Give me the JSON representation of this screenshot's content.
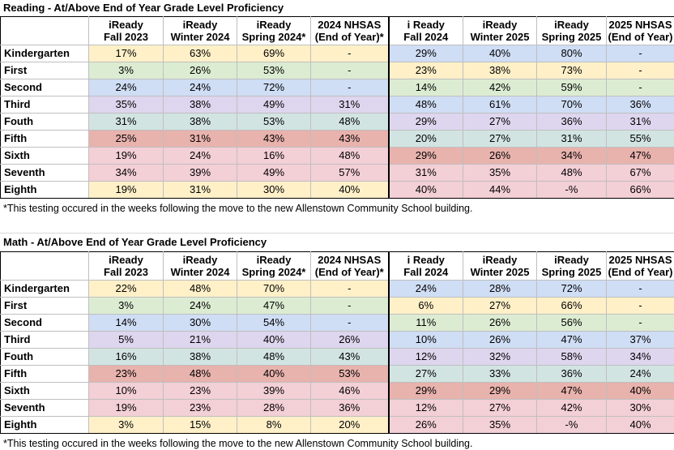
{
  "colors": {
    "yellow": "#fff0c8",
    "green": "#dcecd2",
    "blue": "#cfddf5",
    "purple": "#ddd6ee",
    "teal": "#d2e4e2",
    "red": "#e8b2ad",
    "pink": "#f3cfd6"
  },
  "headers": [
    [
      "",
      ""
    ],
    [
      "iReady",
      "Fall 2023"
    ],
    [
      "iReady",
      "Winter 2024"
    ],
    [
      "iReady",
      "Spring 2024*"
    ],
    [
      "2024 NHSAS",
      "(End of Year)*"
    ],
    [
      "i Ready",
      "Fall 2024"
    ],
    [
      "iReady",
      "Winter 2025"
    ],
    [
      "iReady",
      "Spring 2025"
    ],
    [
      "2025 NHSAS",
      "(End of Year)"
    ]
  ],
  "reading": {
    "title": "Reading - At/Above End of Year Grade Level Proficiency",
    "note": "*This testing occured in the weeks following the move to the new Allenstown Community School building.",
    "rows": [
      {
        "grade": "Kindergarten",
        "c1": "yellow",
        "c2": "blue",
        "v": [
          "17%",
          "63%",
          "69%",
          "-",
          "29%",
          "40%",
          "80%",
          "-"
        ]
      },
      {
        "grade": "First",
        "c1": "green",
        "c2": "yellow",
        "v": [
          "3%",
          "26%",
          "53%",
          "-",
          "23%",
          "38%",
          "73%",
          "-"
        ]
      },
      {
        "grade": "Second",
        "c1": "blue",
        "c2": "green",
        "v": [
          "24%",
          "24%",
          "72%",
          "-",
          "14%",
          "42%",
          "59%",
          "-"
        ]
      },
      {
        "grade": "Third",
        "c1": "purple",
        "c2": "blue",
        "v": [
          "35%",
          "38%",
          "49%",
          "31%",
          "48%",
          "61%",
          "70%",
          "36%"
        ]
      },
      {
        "grade": "Fouth",
        "c1": "teal",
        "c2": "purple",
        "v": [
          "31%",
          "38%",
          "53%",
          "48%",
          "29%",
          "27%",
          "36%",
          "31%"
        ]
      },
      {
        "grade": "Fifth",
        "c1": "red",
        "c2": "teal",
        "v": [
          "25%",
          "31%",
          "43%",
          "43%",
          "20%",
          "27%",
          "31%",
          "55%"
        ]
      },
      {
        "grade": "Sixth",
        "c1": "pink",
        "c2": "red",
        "v": [
          "19%",
          "24%",
          "16%",
          "48%",
          "29%",
          "26%",
          "34%",
          "47%"
        ]
      },
      {
        "grade": "Seventh",
        "c1": "pink",
        "c2": "pink",
        "v": [
          "34%",
          "39%",
          "49%",
          "57%",
          "31%",
          "35%",
          "48%",
          "67%"
        ]
      },
      {
        "grade": "Eighth",
        "c1": "yellow",
        "c2": "pink",
        "v": [
          "19%",
          "31%",
          "30%",
          "40%",
          "40%",
          "44%",
          "-%",
          "66%"
        ]
      }
    ]
  },
  "math": {
    "title": "Math - At/Above End of Year Grade Level Proficiency",
    "note": "*This testing occured in the weeks following the move to the new Allenstown Community School building.",
    "rows": [
      {
        "grade": "Kindergarten",
        "c1": "yellow",
        "c2": "blue",
        "v": [
          "22%",
          "48%",
          "70%",
          "-",
          "24%",
          "28%",
          "72%",
          "-"
        ]
      },
      {
        "grade": "First",
        "c1": "green",
        "c2": "yellow",
        "v": [
          "3%",
          "24%",
          "47%",
          "-",
          "6%",
          "27%",
          "66%",
          "-"
        ]
      },
      {
        "grade": "Second",
        "c1": "blue",
        "c2": "green",
        "v": [
          "14%",
          "30%",
          "54%",
          "-",
          "11%",
          "26%",
          "56%",
          "-"
        ]
      },
      {
        "grade": "Third",
        "c1": "purple",
        "c2": "blue",
        "v": [
          "5%",
          "21%",
          "40%",
          "26%",
          "10%",
          "26%",
          "47%",
          "37%"
        ]
      },
      {
        "grade": "Fouth",
        "c1": "teal",
        "c2": "purple",
        "v": [
          "16%",
          "38%",
          "48%",
          "43%",
          "12%",
          "32%",
          "58%",
          "34%"
        ]
      },
      {
        "grade": "Fifth",
        "c1": "red",
        "c2": "teal",
        "v": [
          "23%",
          "48%",
          "40%",
          "53%",
          "27%",
          "33%",
          "36%",
          "24%"
        ]
      },
      {
        "grade": "Sixth",
        "c1": "pink",
        "c2": "red",
        "v": [
          "10%",
          "23%",
          "39%",
          "46%",
          "29%",
          "29%",
          "47%",
          "40%"
        ]
      },
      {
        "grade": "Seventh",
        "c1": "pink",
        "c2": "pink",
        "v": [
          "19%",
          "23%",
          "28%",
          "36%",
          "12%",
          "27%",
          "42%",
          "30%"
        ]
      },
      {
        "grade": "Eighth",
        "c1": "yellow",
        "c2": "pink",
        "v": [
          "3%",
          "15%",
          "8%",
          "20%",
          "26%",
          "35%",
          "-%",
          "40%"
        ]
      }
    ]
  }
}
